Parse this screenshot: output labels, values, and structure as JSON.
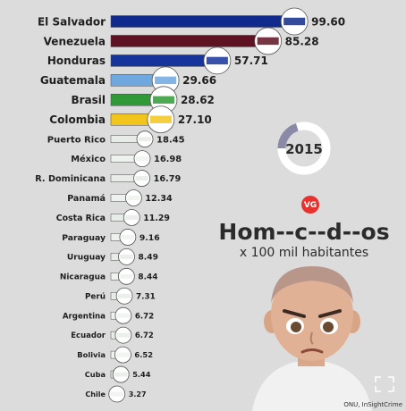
{
  "chart_data": {
    "type": "bar",
    "orientation": "horizontal",
    "title": "Hom--c--d--os",
    "subtitle": "x 100 mil habitantes",
    "categories": [
      "El Salvador",
      "Venezuela",
      "Honduras",
      "Guatemala",
      "Brasil",
      "Colombia",
      "Puerto Rico",
      "México",
      "R. Dominicana",
      "Panamá",
      "Costa Rica",
      "Paraguay",
      "Uruguay",
      "Nicaragua",
      "Perú",
      "Argentina",
      "Ecuador",
      "Bolivia",
      "Cuba",
      "Chile"
    ],
    "values": [
      99.6,
      85.28,
      57.71,
      29.66,
      28.62,
      27.1,
      18.45,
      16.98,
      16.79,
      12.34,
      11.29,
      9.16,
      8.49,
      8.44,
      7.31,
      6.72,
      6.72,
      6.52,
      5.44,
      3.27
    ],
    "value_labels": [
      "99.60",
      "85.28",
      "57.71",
      "29.66",
      "28.62",
      "27.10",
      "18.45",
      "16.98",
      "16.79",
      "12.34",
      "11.29",
      "9.16",
      "8.49",
      "8.44",
      "7.31",
      "6.72",
      "6.72",
      "6.52",
      "5.44",
      "3.27"
    ],
    "bar_colors": [
      "#0f2a8c",
      "#5e1222",
      "#16349a",
      "#6ea8df",
      "#2f9a36",
      "#f2c51c",
      "#e8ece8",
      "#eef2ee",
      "#e8ece8",
      "#eef2ee",
      "#e8ece8",
      "#eef2ee",
      "#e8ece8",
      "#eef2ee",
      "#e8ece8",
      "#eef2ee",
      "#e8ece8",
      "#eef2ee",
      "#e8ece8",
      "#eef2ee"
    ],
    "xlim": [
      0,
      100
    ],
    "grid": false,
    "legend": "none"
  },
  "year": "2015",
  "year_progress": 0.2,
  "brand": "VG",
  "source": "ONU, InSightCrime",
  "colors": {
    "background": "#dcdcdc",
    "brand_red": "#e8322e",
    "ring": "#8a8aa8"
  }
}
